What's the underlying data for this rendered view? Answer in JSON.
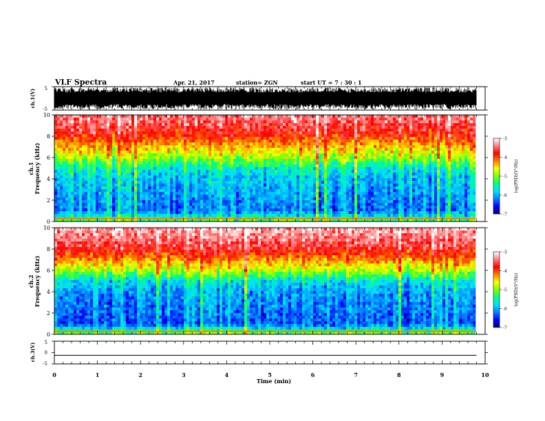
{
  "header": {
    "title": "VLF Spectra",
    "date": "Apr. 21, 2017",
    "station": "station= ZGN",
    "start": "start  UT  =   7 : 30 : 1"
  },
  "colorbar": {
    "label": "log(PSD)(V²/Hz)",
    "ticks": [
      "-3",
      "-4",
      "-5",
      "-6",
      "-7"
    ],
    "range": [
      -7,
      -3
    ],
    "colors": [
      "#000080",
      "#0000ff",
      "#0080ff",
      "#00e0ff",
      "#00ff80",
      "#80ff00",
      "#ffff00",
      "#ff8000",
      "#ff0000",
      "#ff8080",
      "#ffffff"
    ]
  },
  "chart_data": [
    {
      "type": "line",
      "panel": "ch1-waveform",
      "ylabel": "ch.1(V)",
      "ylim": [
        -5,
        5
      ],
      "yticks": [
        "5",
        "-5"
      ],
      "x": [
        0,
        0.5,
        1,
        1.5,
        2,
        2.5,
        3,
        3.5,
        4,
        4.5,
        5,
        5.5,
        6,
        6.5,
        7,
        7.5,
        8,
        8.5,
        9,
        9.5,
        9.8
      ],
      "envelope_max": [
        4.5,
        4.6,
        4.5,
        4.6,
        4.5,
        4.7,
        4.5,
        4.6,
        4.8,
        4.5,
        4.6,
        4.5,
        4.7,
        4.6,
        4.5,
        4.6,
        4.5,
        4.7,
        4.6,
        4.5,
        4.6
      ],
      "envelope_min": [
        -4.6,
        -4.5,
        -4.7,
        -4.5,
        -4.6,
        -4.5,
        -4.6,
        -4.7,
        -4.5,
        -4.6,
        -4.5,
        -4.7,
        -4.6,
        -4.5,
        -4.6,
        -4.7,
        -4.5,
        -4.6,
        -4.5,
        -4.6,
        -4.5
      ]
    },
    {
      "type": "heatmap",
      "panel": "ch1-spectrogram",
      "ylabel_top": "ch.1",
      "ylabel": "Frequency (kHz)",
      "ylim": [
        0,
        10
      ],
      "yticks": [
        "0",
        "2",
        "4",
        "6",
        "8",
        "10"
      ],
      "xlim": [
        0,
        10
      ],
      "data_end_min": 9.8,
      "frequency_kHz": [
        0,
        1,
        2,
        3,
        4,
        5,
        6,
        7,
        8,
        9,
        10
      ],
      "mean_log_psd": [
        -5.2,
        -6.2,
        -6.1,
        -6.0,
        -5.9,
        -5.6,
        -4.9,
        -4.4,
        -3.9,
        -3.6,
        -3.4
      ]
    },
    {
      "type": "heatmap",
      "panel": "ch2-spectrogram",
      "ylabel_top": "ch.2",
      "ylabel": "Frequency (kHz)",
      "ylim": [
        0,
        10
      ],
      "yticks": [
        "0",
        "2",
        "4",
        "6",
        "8",
        "10"
      ],
      "xlim": [
        0,
        10
      ],
      "data_end_min": 9.8,
      "frequency_kHz": [
        0,
        1,
        2,
        3,
        4,
        5,
        6,
        7,
        8,
        9,
        10
      ],
      "mean_log_psd": [
        -5.0,
        -6.3,
        -6.2,
        -6.1,
        -6.0,
        -5.7,
        -4.8,
        -4.2,
        -3.7,
        -3.4,
        -3.2
      ]
    },
    {
      "type": "line",
      "panel": "ch3-waveform",
      "ylabel": "ch.3(V)",
      "ylim": [
        -5,
        5
      ],
      "yticks": [
        "5",
        "0",
        "-5"
      ],
      "x": [
        0,
        9.8
      ],
      "y": [
        -1.2,
        -1.2
      ],
      "xlabel": "Time (min)",
      "xticks": [
        "0",
        "1",
        "2",
        "3",
        "4",
        "5",
        "6",
        "7",
        "8",
        "9",
        "10"
      ]
    }
  ]
}
